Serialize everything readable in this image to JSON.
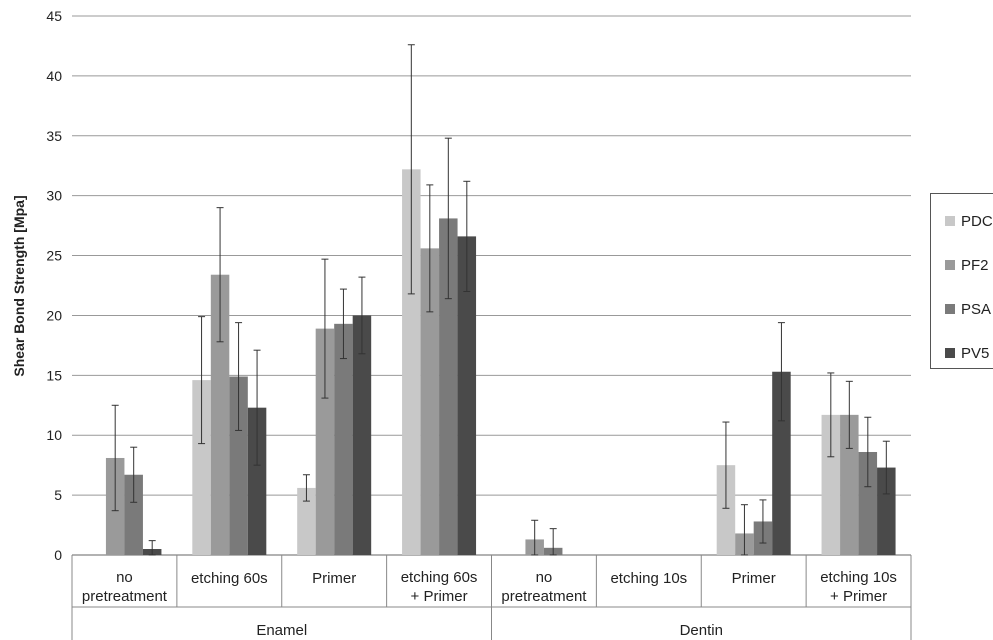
{
  "chart_data": {
    "type": "bar",
    "ylabel": "Shear Bond Strength [Mpa]",
    "ylim": [
      0,
      45
    ],
    "yticks": [
      0,
      5,
      10,
      15,
      20,
      25,
      30,
      35,
      40,
      45
    ],
    "grid": true,
    "legend_position": "right",
    "groups": [
      {
        "label": "Enamel",
        "start": 0,
        "count": 4
      },
      {
        "label": "Dentin",
        "start": 4,
        "count": 4
      }
    ],
    "categories": [
      [
        "no",
        "pretreatment"
      ],
      [
        "etching 60s"
      ],
      [
        "Primer"
      ],
      [
        "etching 60s",
        "+ Primer"
      ],
      [
        "no",
        "pretreatment"
      ],
      [
        "etching 10s"
      ],
      [
        "Primer"
      ],
      [
        "etching 10s",
        "+ Primer"
      ]
    ],
    "series": [
      {
        "name": "PDC",
        "color": "#c8c8c8",
        "values": [
          0,
          14.6,
          5.6,
          32.2,
          0,
          0,
          7.5,
          11.7
        ],
        "errors": [
          0,
          5.3,
          1.1,
          10.4,
          0,
          0,
          3.6,
          3.5
        ]
      },
      {
        "name": "PF2",
        "color": "#9a9a9a",
        "values": [
          8.1,
          23.4,
          18.9,
          25.6,
          1.3,
          0,
          1.8,
          11.7
        ],
        "errors": [
          4.4,
          5.6,
          5.8,
          5.3,
          1.6,
          0,
          2.4,
          2.8
        ]
      },
      {
        "name": "PSA",
        "color": "#7a7a7a",
        "values": [
          6.7,
          14.9,
          19.3,
          28.1,
          0.6,
          0,
          2.8,
          8.6
        ],
        "errors": [
          2.3,
          4.5,
          2.9,
          6.7,
          1.6,
          0,
          1.8,
          2.9
        ]
      },
      {
        "name": "PV5",
        "color": "#4a4a4a",
        "values": [
          0.5,
          12.3,
          20.0,
          26.6,
          0,
          0,
          15.3,
          7.3
        ],
        "errors": [
          0.7,
          4.8,
          3.2,
          4.6,
          0,
          0,
          4.1,
          2.2
        ]
      }
    ]
  }
}
